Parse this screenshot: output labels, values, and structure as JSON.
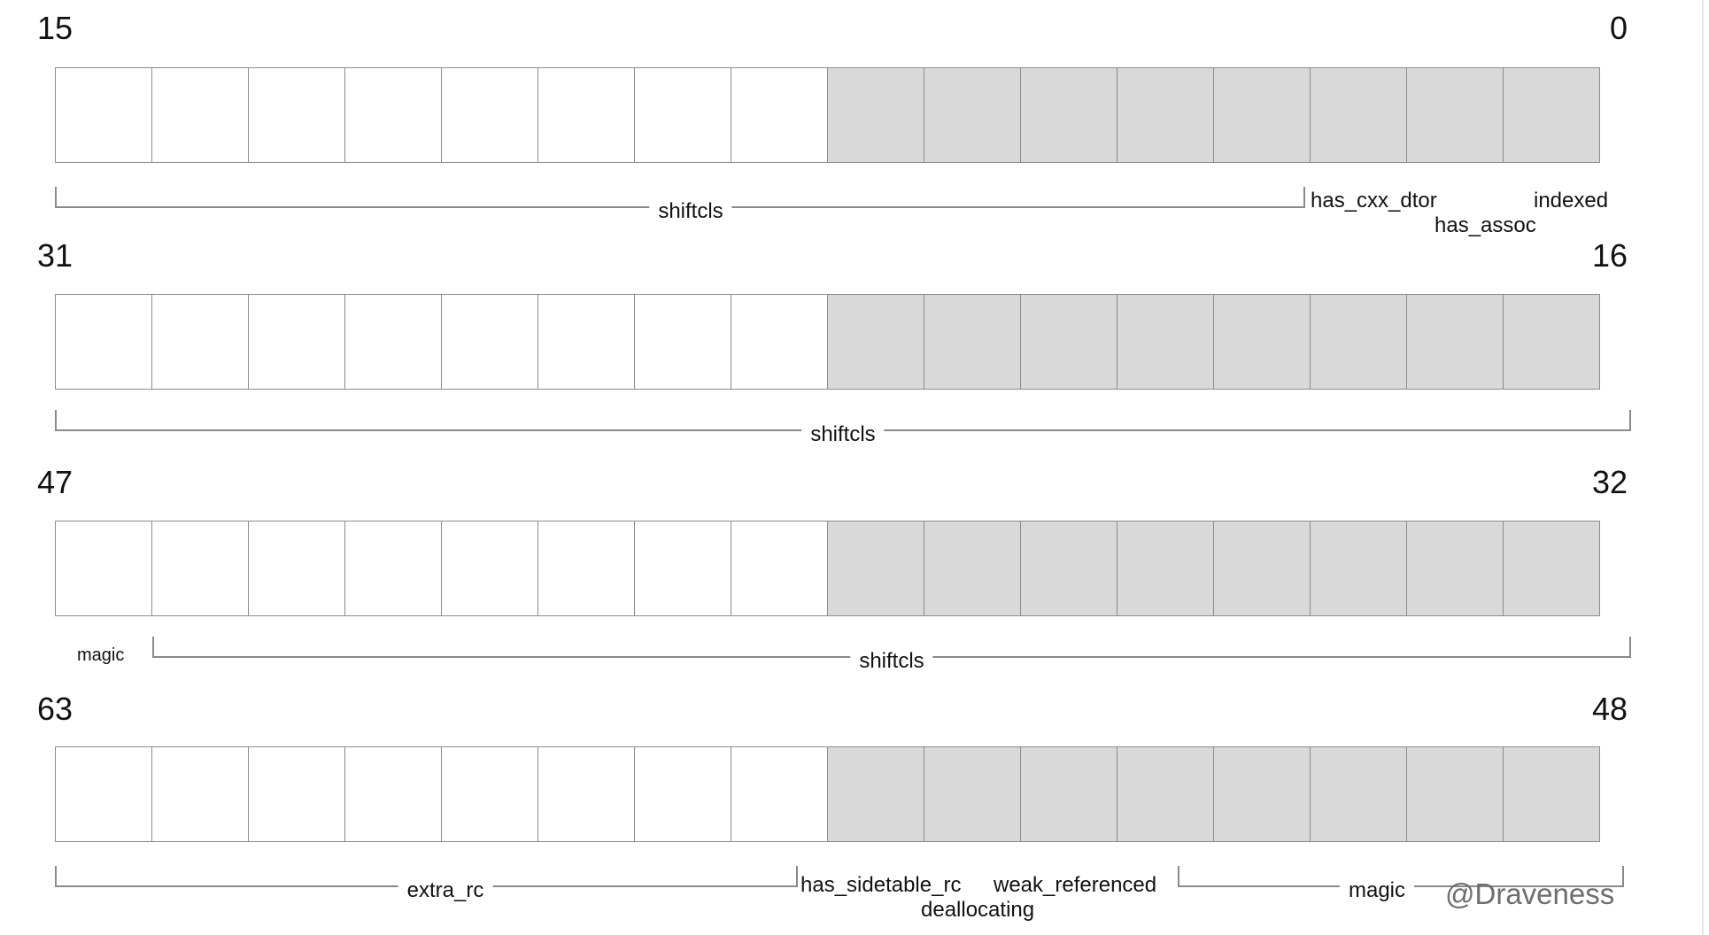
{
  "rows": [
    {
      "high_bit": "15",
      "low_bit": "0",
      "brackets": [
        {
          "label": "shiftcls"
        }
      ],
      "field_labels": [
        "has_cxx_dtor",
        "has_assoc",
        "indexed"
      ]
    },
    {
      "high_bit": "31",
      "low_bit": "16",
      "brackets": [
        {
          "label": "shiftcls"
        }
      ],
      "field_labels": []
    },
    {
      "high_bit": "47",
      "low_bit": "32",
      "brackets": [
        {
          "label": "shiftcls"
        }
      ],
      "field_labels": [
        "magic"
      ]
    },
    {
      "high_bit": "63",
      "low_bit": "48",
      "brackets": [
        {
          "label": "extra_rc"
        },
        {
          "label": "magic"
        }
      ],
      "field_labels": [
        "has_sidetable_rc",
        "deallocating",
        "weak_referenced"
      ]
    }
  ],
  "cells_per_row": 16,
  "colors": {
    "empty_cell": "#ffffff",
    "shaded_cell": "#d9d9d9",
    "grid_line": "#8c8c8c"
  },
  "watermark": "@Draveness"
}
